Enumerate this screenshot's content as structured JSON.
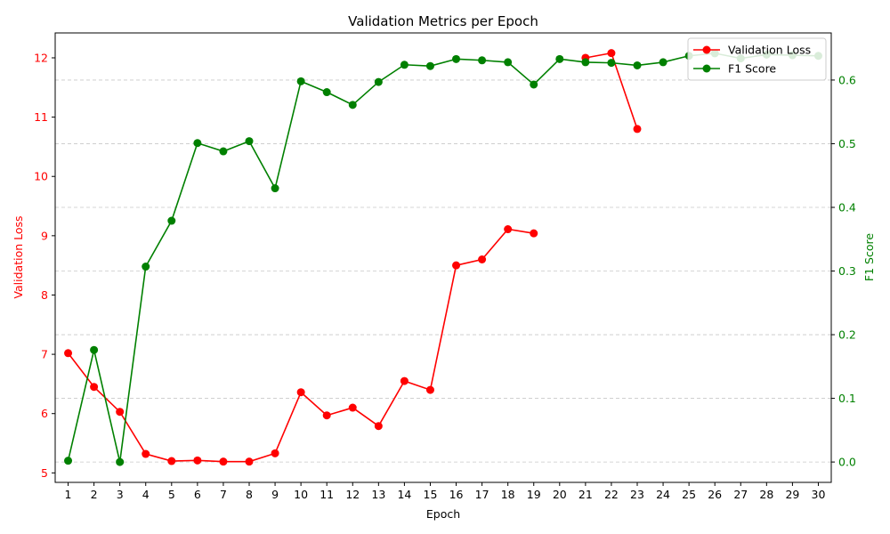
{
  "chart_data": {
    "type": "line",
    "title": "Validation Metrics per Epoch",
    "xlabel": "Epoch",
    "x": [
      1,
      2,
      3,
      4,
      5,
      6,
      7,
      8,
      9,
      10,
      11,
      12,
      13,
      14,
      15,
      16,
      17,
      18,
      19,
      20,
      21,
      22,
      23,
      24,
      25,
      26,
      27,
      28,
      29,
      30
    ],
    "grid": "horizontal dashed, right axis",
    "legend": {
      "placement": "top-right"
    },
    "axes": {
      "left": {
        "label": "Validation Loss",
        "color": "#ff0000",
        "ylim": [
          4.84,
          12.42
        ],
        "ticks": [
          5,
          6,
          7,
          8,
          9,
          10,
          11,
          12
        ]
      },
      "right": {
        "label": "F1 Score",
        "color": "#008000",
        "ylim": [
          -0.032,
          0.674
        ],
        "ticks": [
          0.0,
          0.1,
          0.2,
          0.3,
          0.4,
          0.5,
          0.6
        ],
        "tick_labels": [
          "0.0",
          "0.1",
          "0.2",
          "0.3",
          "0.4",
          "0.5",
          "0.6"
        ]
      }
    },
    "series": [
      {
        "name": "Validation Loss",
        "axis": "left",
        "color": "#ff0000",
        "values": [
          7.02,
          6.45,
          6.03,
          5.32,
          5.2,
          5.21,
          5.19,
          5.19,
          5.33,
          6.36,
          5.97,
          6.1,
          5.79,
          6.55,
          6.4,
          8.5,
          8.6,
          9.11,
          9.04,
          null,
          12.0,
          12.08,
          10.8,
          null,
          null,
          null,
          null,
          null,
          null,
          null
        ]
      },
      {
        "name": "F1 Score",
        "axis": "right",
        "color": "#008000",
        "values": [
          0.002,
          0.176,
          0.0,
          0.307,
          0.379,
          0.501,
          0.488,
          0.504,
          0.43,
          0.598,
          0.581,
          0.561,
          0.597,
          0.624,
          0.622,
          0.633,
          0.631,
          0.628,
          0.593,
          0.633,
          0.628,
          0.627,
          0.623,
          0.628,
          0.638,
          0.642,
          0.634,
          0.64,
          0.639,
          0.638
        ]
      }
    ]
  }
}
